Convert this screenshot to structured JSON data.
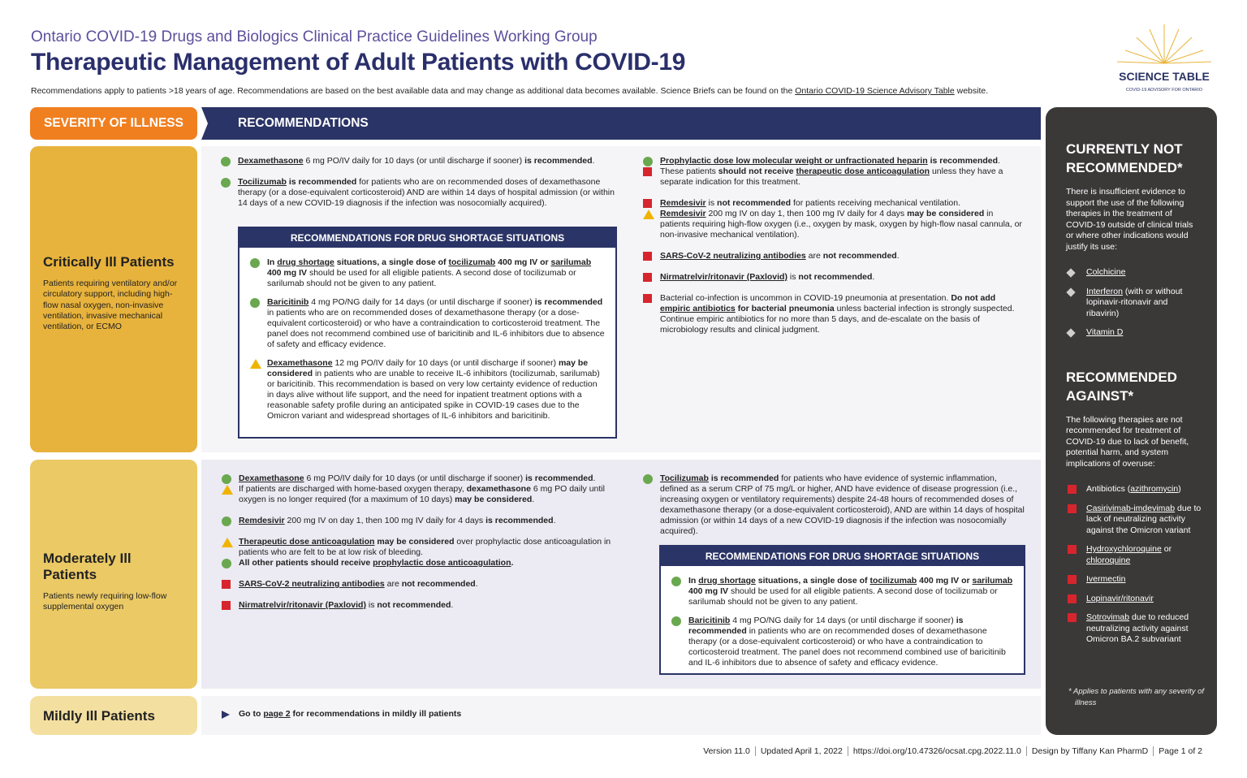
{
  "header": {
    "subtitle": "Ontario COVID-19 Drugs and Biologics Clinical Practice Guidelines Working Group",
    "title": "Therapeutic Management of Adult Patients with COVID-19",
    "note": [
      "Recommendations apply to patients >18 years of age. Recommendations are based on the best available data and may change as additional data becomes available. Science Briefs can be found on the ",
      {
        "text": "Ontario COVID-19 Science Advisory Table",
        "u": true
      },
      " website."
    ]
  },
  "logo": {
    "name": "SCIENCE TABLE",
    "tagline": "COVID-19 ADVISORY FOR ONTARIO"
  },
  "columns": {
    "severity": "SEVERITY OF ILLNESS",
    "recommendations": "RECOMMENDATIONS"
  },
  "rows": [
    {
      "name": "Critically Ill Patients",
      "description": "Patients requiring ventilatory and/or circulatory support, including high-flow nasal oxygen, non-invasive ventilation, invasive mechanical ventilation, or ECMO",
      "left": [
        [
          {
            "icon": "circle",
            "parts": [
              {
                "text": "Dexamethasone",
                "b": true,
                "u": true
              },
              " 6 mg PO/IV daily for 10 days (or until discharge if sooner) ",
              {
                "text": "is recommended",
                "b": true
              },
              "."
            ]
          }
        ],
        [
          {
            "icon": "circle",
            "parts": [
              {
                "text": "Tocilizumab",
                "b": true,
                "u": true
              },
              " ",
              {
                "text": "is recommended",
                "b": true
              },
              " for patients who are on recommended doses of dexamethasone therapy (or a dose-equivalent corticosteroid) AND are within 14 days of hospital admission (or within 14 days of a new COVID-19 diagnosis if the infection was nosocomially acquired)."
            ]
          }
        ]
      ],
      "shortage": {
        "title": "RECOMMENDATIONS FOR DRUG SHORTAGE SITUATIONS",
        "items": [
          {
            "icon": "circle",
            "parts": [
              {
                "text": "In ",
                "b": true
              },
              {
                "text": "drug shortage",
                "b": true,
                "u": true
              },
              {
                "text": " situations, a single dose of ",
                "b": true
              },
              {
                "text": "tocilizumab",
                "b": true,
                "u": true
              },
              {
                "text": " 400 mg IV or ",
                "b": true
              },
              {
                "text": "sarilumab",
                "b": true,
                "u": true
              },
              {
                "text": " 400 mg IV",
                "b": true
              },
              " should be used for all eligible patients. A second dose of tocilizumab or sarilumab should not be given to any patient."
            ]
          },
          {
            "icon": "circle",
            "parts": [
              {
                "text": "Baricitinib",
                "b": true,
                "u": true
              },
              " 4 mg PO/NG daily for 14 days (or until discharge if sooner) ",
              {
                "text": "is recommended",
                "b": true
              },
              " in patients who are on recommended doses of dexamethasone therapy (or a dose-equivalent corticosteroid) or who have a contraindication to corticosteroid treatment. The panel does not recommend combined use of baricitinib and IL-6 inhibitors due to absence of safety and efficacy evidence."
            ]
          },
          {
            "icon": "triangle",
            "parts": [
              {
                "text": "Dexamethasone",
                "b": true,
                "u": true
              },
              " 12 mg PO/IV daily for 10 days (or until discharge if sooner) ",
              {
                "text": "may be considered",
                "b": true
              },
              " in patients who are unable to receive IL-6 inhibitors (tocilizumab, sarilumab) or baricitinib. This recommendation is based on very low certainty evidence of reduction in days alive without life support, and the need for inpatient treatment options with a reasonable safety profile during an anticipated spike in COVID-19 cases due to the Omicron variant and widespread shortages of IL-6 inhibitors and baricitinib."
            ]
          }
        ]
      },
      "right": [
        [
          {
            "icon": "circle",
            "parts": [
              {
                "text": "Prophylactic dose low molecular weight or unfractionated heparin",
                "b": true,
                "u": true
              },
              {
                "text": " is recommended",
                "b": true
              },
              "."
            ]
          },
          {
            "icon": "square",
            "parts": [
              "These patients ",
              {
                "text": "should not receive ",
                "b": true
              },
              {
                "text": "therapeutic dose anticoagulation",
                "b": true,
                "u": true
              },
              " unless they have a separate indication for this treatment."
            ]
          }
        ],
        [
          {
            "icon": "square",
            "parts": [
              {
                "text": "Remdesivir",
                "b": true,
                "u": true
              },
              " is ",
              {
                "text": "not recommended",
                "b": true
              },
              " for patients receiving mechanical ventilation."
            ]
          },
          {
            "icon": "triangle",
            "parts": [
              {
                "text": "Remdesivir",
                "b": true,
                "u": true
              },
              " 200 mg IV on day 1, then 100 mg IV daily for 4 days ",
              {
                "text": "may be considered",
                "b": true
              },
              " in patients requiring high-flow oxygen (i.e., oxygen by mask, oxygen by high-flow nasal cannula, or non-invasive mechanical ventilation)."
            ]
          }
        ],
        [
          {
            "icon": "square",
            "parts": [
              {
                "text": "SARS-CoV-2 neutralizing antibodies",
                "b": true,
                "u": true
              },
              " are ",
              {
                "text": "not recommended",
                "b": true
              },
              "."
            ]
          }
        ],
        [
          {
            "icon": "square",
            "parts": [
              {
                "text": "Nirmatrelvir/ritonavir (Paxlovid)",
                "b": true,
                "u": true
              },
              " is ",
              {
                "text": "not recommended",
                "b": true
              },
              "."
            ]
          }
        ],
        [
          {
            "icon": "square",
            "parts": [
              "Bacterial co-infection is uncommon in COVID-19 pneumonia at presentation. ",
              {
                "text": "Do not add ",
                "b": true
              },
              {
                "text": "empiric antibiotics",
                "b": true,
                "u": true
              },
              {
                "text": " for bacterial pneumonia",
                "b": true
              },
              " unless bacterial infection is strongly suspected. Continue empiric antibiotics for no more than 5 days, and de-escalate on the basis of microbiology results and clinical judgment."
            ]
          }
        ]
      ]
    },
    {
      "name": "Moderately Ill Patients",
      "description": "Patients newly requiring low-flow supplemental oxygen",
      "left": [
        [
          {
            "icon": "circle",
            "parts": [
              {
                "text": "Dexamethasone",
                "b": true,
                "u": true
              },
              " 6 mg PO/IV daily for 10 days (or until discharge if sooner) ",
              {
                "text": "is recommended",
                "b": true
              },
              "."
            ]
          },
          {
            "icon": "triangle",
            "parts": [
              "If patients are discharged with home-based oxygen therapy, ",
              {
                "text": "dexamethasone",
                "b": true
              },
              " 6 mg PO daily until oxygen is no longer required (for a maximum of 10 days) ",
              {
                "text": "may be considered",
                "b": true
              },
              "."
            ]
          }
        ],
        [
          {
            "icon": "circle",
            "parts": [
              {
                "text": "Remdesivir",
                "b": true,
                "u": true
              },
              " 200 mg IV on day 1, then 100 mg IV daily for 4 days ",
              {
                "text": "is recommended",
                "b": true
              },
              "."
            ]
          }
        ],
        [
          {
            "icon": "triangle",
            "parts": [
              {
                "text": "Therapeutic dose anticoagulation",
                "b": true,
                "u": true
              },
              {
                "text": " may be considered",
                "b": true
              },
              " over prophylactic dose anticoagulation in patients who are felt to be at low risk of bleeding."
            ]
          },
          {
            "icon": "circle",
            "parts": [
              {
                "text": "All other patients should receive ",
                "b": true
              },
              {
                "text": "prophylactic dose anticoagulation",
                "b": true,
                "u": true
              },
              {
                "text": ".",
                "b": true
              }
            ]
          }
        ],
        [
          {
            "icon": "square",
            "parts": [
              {
                "text": "SARS-CoV-2 neutralizing antibodies",
                "b": true,
                "u": true
              },
              " are ",
              {
                "text": "not recommended",
                "b": true
              },
              "."
            ]
          }
        ],
        [
          {
            "icon": "square",
            "parts": [
              {
                "text": "Nirmatrelvir/ritonavir (Paxlovid)",
                "b": true,
                "u": true
              },
              " is ",
              {
                "text": "not recommended",
                "b": true
              },
              "."
            ]
          }
        ]
      ],
      "right": [
        [
          {
            "icon": "circle",
            "parts": [
              {
                "text": "Tocilizumab",
                "b": true,
                "u": true
              },
              " ",
              {
                "text": "is recommended",
                "b": true
              },
              " for patients who have evidence of systemic inflammation, defined as a serum CRP of 75 mg/L or higher, AND have evidence of disease progression (i.e., increasing oxygen or ventilatory requirements) despite 24-48 hours of recommended doses of dexamethasone therapy (or a dose-equivalent corticosteroid), AND are within 14 days of hospital admission (or within 14 days of a new COVID-19 diagnosis if the infection was nosocomially acquired)."
            ]
          }
        ]
      ],
      "shortage": {
        "title": "RECOMMENDATIONS FOR DRUG SHORTAGE SITUATIONS",
        "items": [
          {
            "icon": "circle",
            "parts": [
              {
                "text": "In ",
                "b": true
              },
              {
                "text": "drug shortage",
                "b": true,
                "u": true
              },
              {
                "text": " situations, a single dose of ",
                "b": true
              },
              {
                "text": "tocilizumab",
                "b": true,
                "u": true
              },
              {
                "text": " 400 mg IV or ",
                "b": true
              },
              {
                "text": "sarilumab",
                "b": true,
                "u": true
              },
              {
                "text": " 400 mg IV",
                "b": true
              },
              " should be used for all eligible patients. A second dose of tocilizumab or sarilumab should not be given to any patient."
            ]
          },
          {
            "icon": "circle",
            "parts": [
              {
                "text": "Baricitinib",
                "b": true,
                "u": true
              },
              " 4 mg PO/NG daily for 14 days (or until discharge if sooner) ",
              {
                "text": "is recommended",
                "b": true
              },
              " in patients who are on recommended doses of dexamethasone therapy (or a dose-equivalent corticosteroid) or who have a contraindication to corticosteroid treatment. The panel does not recommend combined use of baricitinib and IL-6 inhibitors due to absence of safety and efficacy evidence."
            ]
          }
        ]
      }
    },
    {
      "name": "Mildly Ill Patients",
      "left": [
        [
          {
            "icon": "arrow",
            "parts": [
              {
                "text": "Go to ",
                "b": true
              },
              {
                "text": "page 2",
                "b": true,
                "u": true
              },
              {
                "text": " for recommendations in mildly ill patients",
                "b": true
              }
            ]
          }
        ]
      ]
    }
  ],
  "sidebar": {
    "sections": [
      {
        "heading": "CURRENTLY NOT RECOMMENDED*",
        "text": "There is insufficient evidence to support the use of the following therapies in the treatment of COVID-19 outside of clinical trials or where other indications would justify its use:",
        "items": [
          {
            "icon": "diamond",
            "parts": [
              {
                "text": "Colchicine",
                "u": true
              }
            ]
          },
          {
            "icon": "diamond",
            "parts": [
              {
                "text": "Interferon",
                "u": true
              },
              " (with or without lopinavir-ritonavir and ribavirin)"
            ]
          },
          {
            "icon": "diamond",
            "parts": [
              {
                "text": "Vitamin D",
                "u": true
              }
            ]
          }
        ]
      },
      {
        "heading": "RECOMMENDED AGAINST*",
        "text": "The following therapies are not recommended for treatment of COVID-19 due to lack of benefit, potential harm, and system implications of overuse:",
        "items": [
          {
            "icon": "square",
            "parts": [
              "Antibiotics (",
              {
                "text": "azithromycin",
                "u": true
              },
              ")"
            ]
          },
          {
            "icon": "square",
            "parts": [
              {
                "text": "Casirivimab-imdevimab",
                "u": true
              },
              " due to lack of neutralizing activity against the Omicron variant"
            ]
          },
          {
            "icon": "square",
            "parts": [
              {
                "text": "Hydroxychloroquine",
                "u": true
              },
              " or ",
              {
                "text": "chloroquine",
                "u": true
              }
            ]
          },
          {
            "icon": "square",
            "parts": [
              {
                "text": "Ivermectin",
                "u": true
              }
            ]
          },
          {
            "icon": "square",
            "parts": [
              {
                "text": "Lopinavir/ritonavir",
                "u": true
              }
            ]
          },
          {
            "icon": "square",
            "parts": [
              {
                "text": "Sotrovimab",
                "u": true
              },
              " due to reduced neutralizing activity against Omicron BA.2 subvariant"
            ]
          }
        ]
      }
    ],
    "footnote": "* Applies to patients with any severity of illness"
  },
  "footer": [
    "Version 11.0",
    "Updated April 1, 2022",
    "https://doi.org/10.47326/ocsat.cpg.2022.11.0",
    "Design by Tiffany Kan PharmD",
    "Page 1 of 2"
  ]
}
